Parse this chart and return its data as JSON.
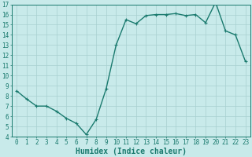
{
  "x": [
    0,
    1,
    2,
    3,
    4,
    5,
    6,
    7,
    8,
    9,
    10,
    11,
    12,
    13,
    14,
    15,
    16,
    17,
    18,
    19,
    20,
    21,
    22,
    23
  ],
  "y": [
    8.5,
    7.7,
    7.0,
    7.0,
    6.5,
    5.8,
    5.3,
    4.2,
    5.7,
    8.7,
    13.0,
    15.5,
    15.1,
    15.9,
    16.0,
    16.0,
    16.1,
    15.9,
    16.0,
    15.2,
    17.2,
    14.4,
    14.0,
    11.4
  ],
  "line_color": "#1a7a6e",
  "bg_color": "#c8eaea",
  "grid_color": "#a8d0d0",
  "xlabel": "Humidex (Indice chaleur)",
  "ylim": [
    4,
    17
  ],
  "xlim": [
    -0.5,
    23.5
  ],
  "yticks": [
    4,
    5,
    6,
    7,
    8,
    9,
    10,
    11,
    12,
    13,
    14,
    15,
    16,
    17
  ],
  "xticks": [
    0,
    1,
    2,
    3,
    4,
    5,
    6,
    7,
    8,
    9,
    10,
    11,
    12,
    13,
    14,
    15,
    16,
    17,
    18,
    19,
    20,
    21,
    22,
    23
  ],
  "marker": "+",
  "marker_size": 3.5,
  "linewidth": 1.0,
  "xlabel_fontsize": 7,
  "tick_fontsize": 5.5
}
